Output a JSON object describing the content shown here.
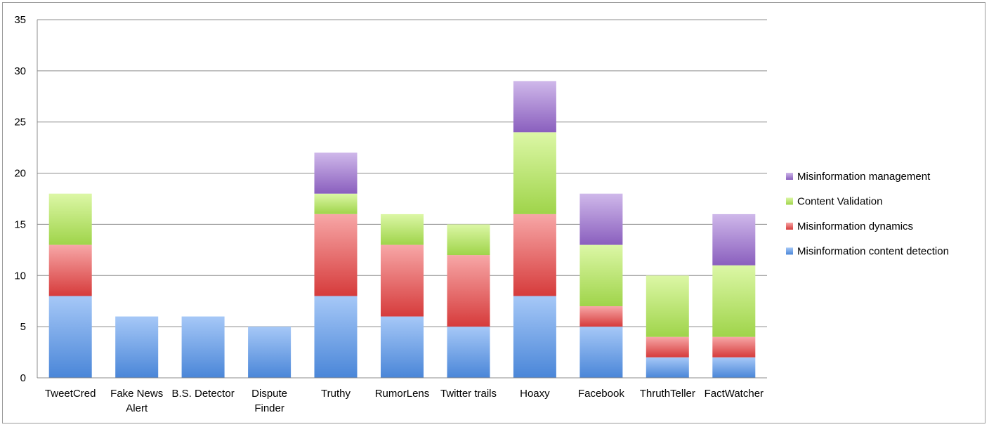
{
  "chart_data": {
    "type": "bar",
    "stacked": true,
    "categories": [
      "TweetCred",
      "Fake News Alert",
      "B.S. Detector",
      "Dispute Finder",
      "Truthy",
      "RumorLens",
      "Twitter trails",
      "Hoaxy",
      "Facebook",
      "ThruthTeller",
      "FactWatcher"
    ],
    "category_lines": [
      [
        "TweetCred"
      ],
      [
        "Fake News",
        "Alert"
      ],
      [
        "B.S. Detector"
      ],
      [
        "Dispute",
        "Finder"
      ],
      [
        "Truthy"
      ],
      [
        "RumorLens"
      ],
      [
        "Twitter trails"
      ],
      [
        "Hoaxy"
      ],
      [
        "Facebook"
      ],
      [
        "ThruthTeller"
      ],
      [
        "FactWatcher"
      ]
    ],
    "series": [
      {
        "name": "Misinformation content detection",
        "color": "#4a86d8",
        "color_light": "#a6c8f7",
        "values": [
          8,
          6,
          6,
          5,
          8,
          6,
          5,
          8,
          5,
          2,
          2
        ]
      },
      {
        "name": "Misinformation dynamics",
        "color": "#d63b3b",
        "color_light": "#f7a7a7",
        "values": [
          5,
          0,
          0,
          0,
          8,
          7,
          7,
          8,
          2,
          2,
          2
        ]
      },
      {
        "name": "Content Validation",
        "color": "#9fd44a",
        "color_light": "#dcf7a6",
        "values": [
          5,
          0,
          0,
          0,
          2,
          3,
          3,
          8,
          6,
          6,
          7
        ]
      },
      {
        "name": "Misinformation management",
        "color": "#8a5fbe",
        "color_light": "#cfb8ea",
        "values": [
          0,
          0,
          0,
          0,
          4,
          0,
          0,
          5,
          5,
          0,
          5
        ]
      }
    ],
    "ylim": [
      0,
      35
    ],
    "yticks": [
      0,
      5,
      10,
      15,
      20,
      25,
      30,
      35
    ],
    "grid": true,
    "legend_position": "right",
    "title": "",
    "xlabel": "",
    "ylabel": ""
  }
}
